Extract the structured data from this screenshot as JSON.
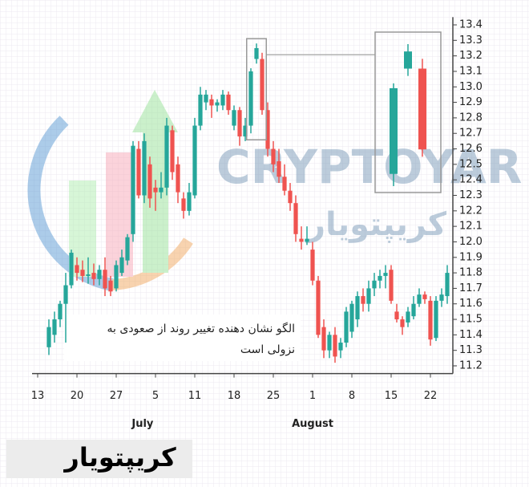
{
  "chart_data": {
    "type": "candlestick",
    "x": [
      2,
      3,
      4,
      5,
      6,
      7,
      8,
      9,
      10,
      11,
      12,
      13,
      14,
      15,
      16,
      17,
      18,
      19,
      20,
      21,
      22,
      23,
      24,
      25,
      26,
      27,
      28,
      29,
      30,
      31,
      32,
      33,
      34,
      35,
      36,
      37,
      38,
      39,
      40,
      41,
      42,
      43,
      44,
      45,
      46,
      47,
      48,
      49,
      50,
      51,
      52,
      53,
      54,
      55,
      56,
      57,
      58,
      59,
      60,
      61,
      62,
      63,
      64,
      65,
      66,
      67,
      68,
      69,
      70,
      71,
      72,
      73
    ],
    "open": [
      11.32,
      11.4,
      11.5,
      11.6,
      11.72,
      11.85,
      11.82,
      11.78,
      11.8,
      11.76,
      11.82,
      11.75,
      11.7,
      11.8,
      11.88,
      12.05,
      12.6,
      12.3,
      12.5,
      12.35,
      12.32,
      12.35,
      12.72,
      12.5,
      12.28,
      12.2,
      12.3,
      12.75,
      12.9,
      12.92,
      12.88,
      12.88,
      12.95,
      12.75,
      12.85,
      12.68,
      12.75,
      13.18,
      13.18,
      12.85,
      12.6,
      12.52,
      12.42,
      12.33,
      12.25,
      12.02,
      12.0,
      11.95,
      11.75,
      11.45,
      11.3,
      11.4,
      11.3,
      11.35,
      11.42,
      11.5,
      11.65,
      11.6,
      11.7,
      11.75,
      11.78,
      11.82,
      11.55,
      11.5,
      11.48,
      11.52,
      11.6,
      11.66,
      11.62,
      11.38,
      11.62,
      11.65
    ],
    "high": [
      11.5,
      11.55,
      11.62,
      11.8,
      11.95,
      11.9,
      11.88,
      11.9,
      11.86,
      11.85,
      11.9,
      11.78,
      11.88,
      11.95,
      12.05,
      12.65,
      12.65,
      12.7,
      12.55,
      12.4,
      12.45,
      12.8,
      12.75,
      12.55,
      12.32,
      12.38,
      12.8,
      13.0,
      12.98,
      12.95,
      12.92,
      12.98,
      12.97,
      12.88,
      12.87,
      12.8,
      13.12,
      13.28,
      13.22,
      12.9,
      12.65,
      12.6,
      12.5,
      12.38,
      12.3,
      12.1,
      12.1,
      12.0,
      11.78,
      11.5,
      11.42,
      11.45,
      11.38,
      11.58,
      11.62,
      11.68,
      11.7,
      11.75,
      11.8,
      11.82,
      11.85,
      11.85,
      11.6,
      11.52,
      11.58,
      11.65,
      11.7,
      11.68,
      11.65,
      11.65,
      11.7,
      11.85
    ],
    "low": [
      11.27,
      11.35,
      11.45,
      11.35,
      11.7,
      11.75,
      11.74,
      11.73,
      11.72,
      11.72,
      11.65,
      11.65,
      11.68,
      11.78,
      11.85,
      12.0,
      12.28,
      12.25,
      12.22,
      12.2,
      12.28,
      12.3,
      12.4,
      12.25,
      12.15,
      12.17,
      12.28,
      12.72,
      12.85,
      12.8,
      12.84,
      12.85,
      12.82,
      12.72,
      12.62,
      12.65,
      12.7,
      13.15,
      12.82,
      12.55,
      12.45,
      12.38,
      12.3,
      12.2,
      12.0,
      11.95,
      11.98,
      11.72,
      11.38,
      11.25,
      11.25,
      11.22,
      11.25,
      11.32,
      11.38,
      11.45,
      11.55,
      11.55,
      11.65,
      11.7,
      11.7,
      11.6,
      11.48,
      11.4,
      11.45,
      11.5,
      11.58,
      11.6,
      11.33,
      11.36,
      11.58,
      11.6
    ],
    "close": [
      11.45,
      11.5,
      11.6,
      11.72,
      11.93,
      11.8,
      11.78,
      11.79,
      11.76,
      11.82,
      11.7,
      11.68,
      11.85,
      11.9,
      12.03,
      12.62,
      12.3,
      12.65,
      12.28,
      12.32,
      12.35,
      12.75,
      12.45,
      12.32,
      12.2,
      12.32,
      12.75,
      12.95,
      12.95,
      12.88,
      12.9,
      12.95,
      12.85,
      12.85,
      12.68,
      12.75,
      13.1,
      13.25,
      12.85,
      12.6,
      12.5,
      12.42,
      12.33,
      12.25,
      12.05,
      12.0,
      12.02,
      11.75,
      11.4,
      11.3,
      11.4,
      11.26,
      11.35,
      11.55,
      11.6,
      11.65,
      11.6,
      11.7,
      11.75,
      11.78,
      11.8,
      11.62,
      11.5,
      11.45,
      11.55,
      11.6,
      11.66,
      11.63,
      11.37,
      11.62,
      11.66,
      11.8
    ],
    "up_color": "#26a69a",
    "down_color": "#ef5350",
    "xlim": [
      -1,
      74
    ],
    "xticks": [
      {
        "value": 0,
        "label": "13"
      },
      {
        "value": 7,
        "label": "20"
      },
      {
        "value": 14,
        "label": "27"
      },
      {
        "value": 21,
        "label": "5"
      },
      {
        "value": 28,
        "label": "11"
      },
      {
        "value": 35,
        "label": "18"
      },
      {
        "value": 42,
        "label": "25"
      },
      {
        "value": 49,
        "label": "1"
      },
      {
        "value": 56,
        "label": "8"
      },
      {
        "value": 63,
        "label": "15"
      },
      {
        "value": 70,
        "label": "22"
      }
    ],
    "month_labels": [
      {
        "value": 18.7,
        "label": "July"
      },
      {
        "value": 49,
        "label": "August"
      }
    ],
    "ylim": [
      11.15,
      13.45
    ],
    "yticks": [
      11.2,
      11.3,
      11.4,
      11.5,
      11.6,
      11.7,
      11.8,
      11.9,
      {
        "value": 12,
        "label": "12.0"
      },
      12.1,
      12.2,
      12.3,
      12.4,
      12.5,
      12.6,
      12.7,
      12.8,
      12.9,
      {
        "value": 13,
        "label": "13.0"
      },
      13.1,
      13.2,
      13.3,
      13.4
    ],
    "grid": false,
    "highlight": [
      38,
      40
    ],
    "annotation": [
      "الگو نشان دهنده تغییر روند از صعودی به",
      "نزولی است"
    ],
    "watermark": {
      "latin": "CRYPTOYAR",
      "persian": "کریپتویار"
    },
    "logo": "کریپتویار"
  }
}
